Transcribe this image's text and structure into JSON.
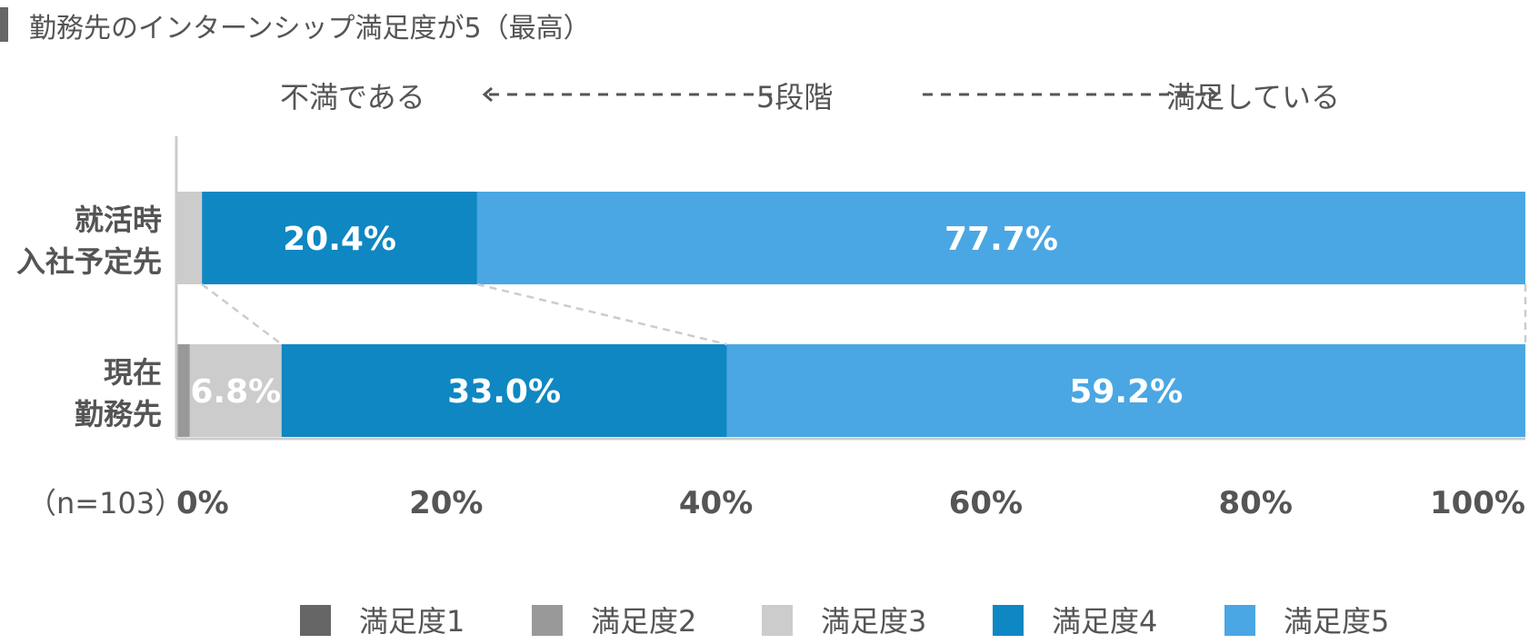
{
  "title": "勤務先のインターンシップ満足度が5（最高）",
  "scale": {
    "left_label": "不満である",
    "center_label": "5段階",
    "right_label": "満足している"
  },
  "n_label": "（n=103）",
  "chart_data": {
    "type": "bar",
    "orientation": "horizontal",
    "stacked": true,
    "categories": [
      "就活時\n入社予定先",
      "現在\n勤務先"
    ],
    "series": [
      {
        "name": "満足度1",
        "values": [
          0.0,
          0.0
        ],
        "color": "#666666"
      },
      {
        "name": "満足度2",
        "values": [
          0.0,
          1.0
        ],
        "color": "#999999"
      },
      {
        "name": "満足度3",
        "values": [
          1.9,
          6.8
        ],
        "color": "#cccccc"
      },
      {
        "name": "満足度4",
        "values": [
          20.4,
          33.0
        ],
        "color": "#0e87c3"
      },
      {
        "name": "満足度5",
        "values": [
          77.7,
          59.2
        ],
        "color": "#4aa7e3"
      }
    ],
    "data_labels": [
      [
        null,
        null,
        null,
        "20.4%",
        "77.7%"
      ],
      [
        null,
        null,
        "6.8%",
        "33.0%",
        "59.2%"
      ]
    ],
    "x_ticks": [
      "0%",
      "20%",
      "40%",
      "60%",
      "80%",
      "100%"
    ],
    "xlim": [
      0,
      100
    ],
    "legend_position": "bottom",
    "connector_lines": true
  }
}
